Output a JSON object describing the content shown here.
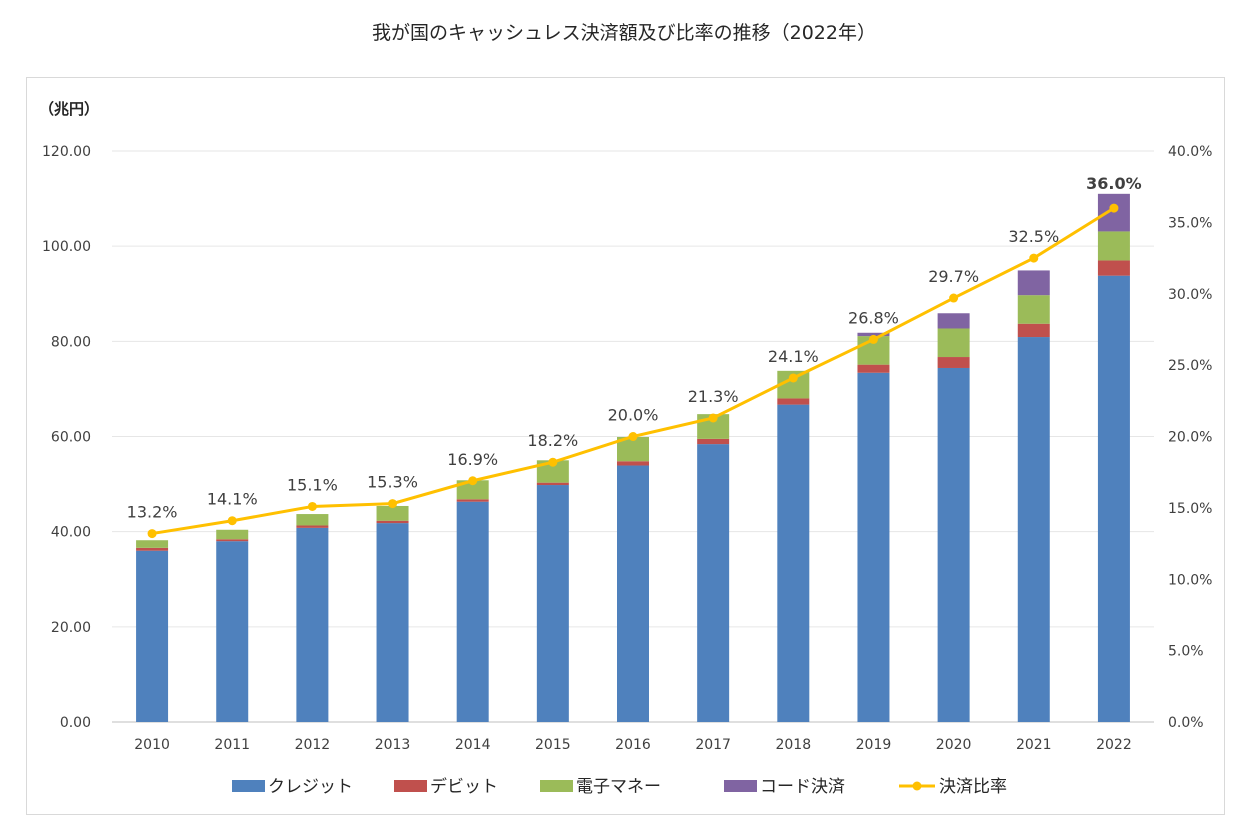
{
  "title": "我が国のキャッシュレス決済額及び比率の推移（2022年）",
  "chart_data": {
    "type": "bar",
    "stacked": true,
    "y_unit_label": "（兆円）",
    "categories": [
      "2010",
      "2011",
      "2012",
      "2013",
      "2014",
      "2015",
      "2016",
      "2017",
      "2018",
      "2019",
      "2020",
      "2021",
      "2022"
    ],
    "series": [
      {
        "name": "クレジット",
        "color": "#4f81bd",
        "values": [
          36.0,
          38.0,
          40.8,
          41.8,
          46.3,
          49.8,
          53.9,
          58.4,
          66.7,
          73.4,
          74.4,
          80.9,
          93.8
        ]
      },
      {
        "name": "デビット",
        "color": "#c0504d",
        "values": [
          0.6,
          0.4,
          0.5,
          0.5,
          0.5,
          0.5,
          0.9,
          1.1,
          1.3,
          1.7,
          2.3,
          2.8,
          3.2
        ]
      },
      {
        "name": "電子マネー",
        "color": "#9bbb59",
        "values": [
          1.6,
          2.0,
          2.4,
          3.1,
          4.0,
          4.7,
          5.1,
          5.2,
          5.8,
          6.0,
          6.0,
          6.0,
          6.1
        ]
      },
      {
        "name": "コード決済",
        "color": "#8064a2",
        "values": [
          0,
          0,
          0,
          0,
          0,
          0,
          0,
          0,
          0,
          0.7,
          3.2,
          5.2,
          7.9
        ]
      }
    ],
    "line": {
      "name": "決済比率",
      "color": "#ffc000",
      "axis": "right",
      "values": [
        13.2,
        14.1,
        15.1,
        15.3,
        16.9,
        18.2,
        20.0,
        21.3,
        24.1,
        26.8,
        29.7,
        32.5,
        36.0
      ],
      "labels": [
        "13.2%",
        "14.1%",
        "15.1%",
        "15.3%",
        "16.9%",
        "18.2%",
        "20.0%",
        "21.3%",
        "24.1%",
        "26.8%",
        "29.7%",
        "32.5%",
        "36.0%"
      ],
      "highlight_color": "#ff0000"
    },
    "y_left": {
      "min": 0,
      "max": 120,
      "ticks": [
        "0.00",
        "20.00",
        "40.00",
        "60.00",
        "80.00",
        "100.00",
        "120.00"
      ]
    },
    "y_right": {
      "min": 0,
      "max": 40,
      "ticks": [
        "0.0%",
        "5.0%",
        "10.0%",
        "15.0%",
        "20.0%",
        "25.0%",
        "30.0%",
        "35.0%",
        "40.0%"
      ]
    },
    "grid": true,
    "legend": "bottom"
  }
}
